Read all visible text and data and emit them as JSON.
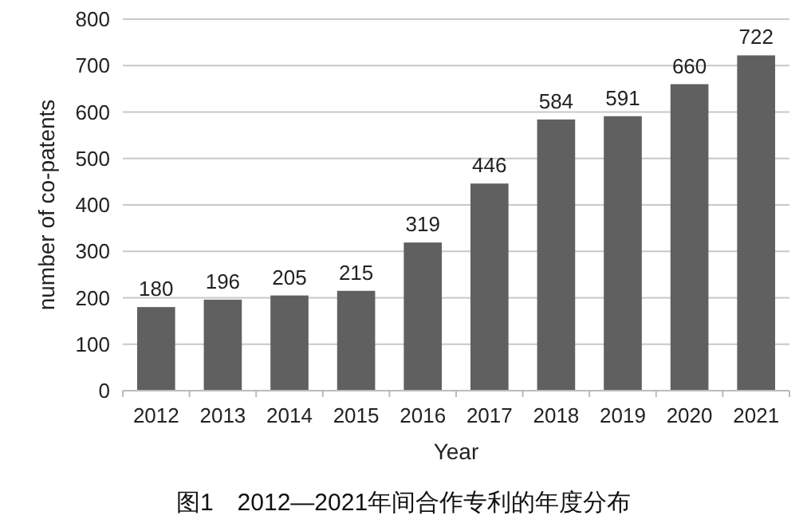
{
  "chart_data": {
    "type": "bar",
    "title": "图1　2012—2021年间合作专利的年度分布",
    "xlabel": "Year",
    "ylabel": "number of co-patents",
    "categories": [
      "2012",
      "2013",
      "2014",
      "2015",
      "2016",
      "2017",
      "2018",
      "2019",
      "2020",
      "2021"
    ],
    "values": [
      180,
      196,
      205,
      215,
      319,
      446,
      584,
      591,
      660,
      722
    ],
    "color": "#606060",
    "ylim": [
      0,
      800
    ],
    "yticks": [
      0,
      100,
      200,
      300,
      400,
      500,
      600,
      700,
      800
    ],
    "grid": "y",
    "data_labels": true
  }
}
